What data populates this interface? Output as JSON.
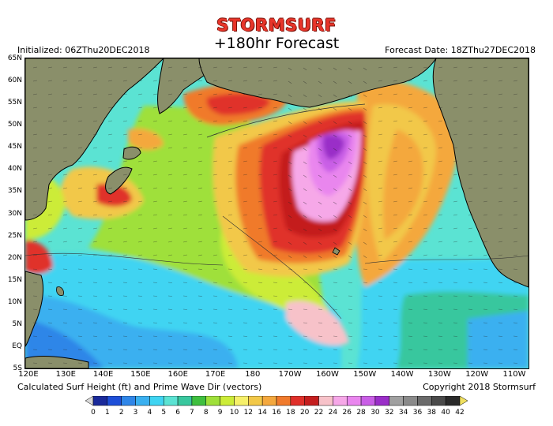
{
  "header": {
    "brand": "STORMSURF",
    "title": "+180hr Forecast",
    "initialized": "Initialized: 06ZThu20DEC2018",
    "forecast_date": "Forecast Date: 18ZThu27DEC2018"
  },
  "footer": {
    "caption": "Calculated Surf Height (ft) and Prime Wave Dir (vectors)",
    "copyright": "Copyright 2018 Stormsurf"
  },
  "map": {
    "lat_labels": [
      "65N",
      "60N",
      "55N",
      "50N",
      "45N",
      "40N",
      "35N",
      "30N",
      "25N",
      "20N",
      "15N",
      "10N",
      "5N",
      "EQ",
      "5S"
    ],
    "lon_labels": [
      "120E",
      "130E",
      "140E",
      "150E",
      "160E",
      "170E",
      "180",
      "170W",
      "160W",
      "150W",
      "140W",
      "130W",
      "120W",
      "110W"
    ],
    "land_color": "#8a8f6a",
    "coast_color": "#000000"
  },
  "colorbar": {
    "labels": [
      "0",
      "1",
      "2",
      "3",
      "4",
      "5",
      "6",
      "7",
      "8",
      "9",
      "10",
      "12",
      "14",
      "16",
      "18",
      "20",
      "22",
      "24",
      "26",
      "28",
      "30",
      "32",
      "34",
      "36",
      "38",
      "40",
      "42"
    ],
    "colors": [
      "#d8d8d8",
      "#1a2a9a",
      "#1e4fd8",
      "#2f86e8",
      "#3ab0f0",
      "#3fd4f2",
      "#5be3d3",
      "#39c79e",
      "#3fbf3f",
      "#9fe03a",
      "#ccec38",
      "#f6f06a",
      "#f2c848",
      "#f4a83e",
      "#f07a2c",
      "#e0302a",
      "#c41e1e",
      "#f7c2c9",
      "#f6a8e8",
      "#e986ee",
      "#c95ee6",
      "#9a2ec8",
      "#a0a0a0",
      "#8a8a8a",
      "#6a6a6a",
      "#4a4a4a",
      "#2a2a2a",
      "#f0e060"
    ]
  }
}
